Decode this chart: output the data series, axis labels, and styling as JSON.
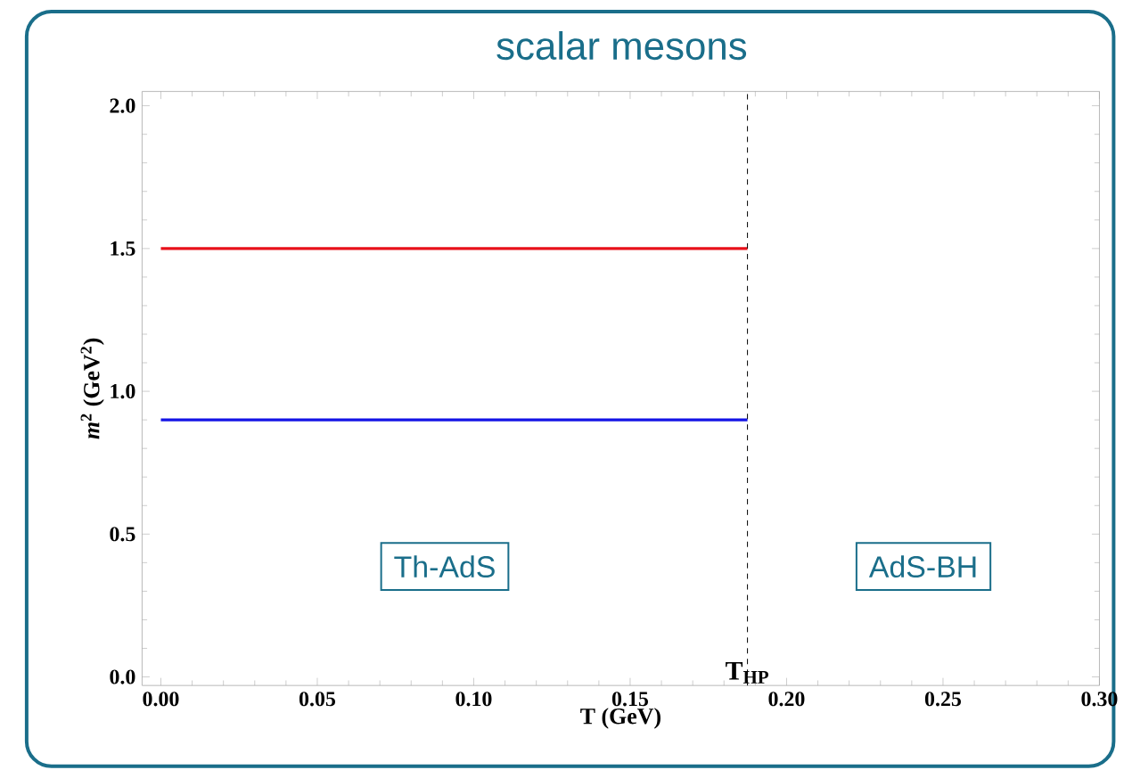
{
  "chart_data": {
    "type": "line",
    "title": "scalar mesons",
    "xlabel": "T (GeV)",
    "ylabel": "*m*$^{2}$ (GeV$^{2}$)",
    "series": [
      {
        "color": "#e8101a",
        "values": [
          1.5,
          1.5
        ]
      },
      {
        "color": "#1414e6",
        "values": [
          0.9,
          0.9
        ]
      }
    ],
    "x": [
      0,
      0.1875
    ],
    "xlim": [
      -0.006,
      0.3
    ],
    "ylim": [
      -0.03,
      2.05
    ],
    "xticks": [
      {
        "value": 0,
        "label": "0.00"
      },
      {
        "value": 0.05,
        "label": "0.05"
      },
      {
        "value": 0.1,
        "label": "0.10"
      },
      {
        "value": 0.15,
        "label": "0.15"
      },
      {
        "value": 0.2,
        "label": "0.20"
      },
      {
        "value": 0.25,
        "label": "0.25"
      },
      {
        "value": 0.3,
        "label": "0.30"
      }
    ],
    "yticks": [
      {
        "value": 0,
        "label": "0.0"
      },
      {
        "value": 0.5,
        "label": "0.5"
      },
      {
        "value": 1,
        "label": "1.0"
      },
      {
        "value": 1.5,
        "label": "1.5"
      },
      {
        "value": 2,
        "label": "2.0"
      }
    ],
    "ref_lines": [
      {
        "axis": "x",
        "value": 0.1875,
        "label": "T$_{HP}$",
        "color": "#000000",
        "line_style": "dashed"
      }
    ],
    "annotations": [
      "Th-AdS",
      "AdS-BH"
    ],
    "grid": false,
    "marker": "none",
    "line_style": "solid"
  }
}
